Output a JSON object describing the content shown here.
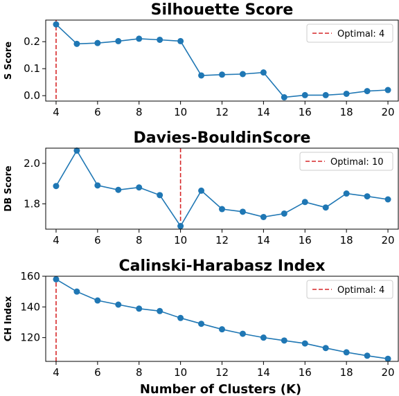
{
  "chart_data": [
    {
      "type": "line",
      "title": "Silhouette Score",
      "xlabel": "",
      "ylabel": "S Score",
      "xlim": [
        3.5,
        20.5
      ],
      "ylim": [
        -0.02,
        0.28
      ],
      "x_ticks": [
        4,
        6,
        8,
        10,
        12,
        14,
        16,
        18,
        20
      ],
      "y_ticks": [
        0.0,
        0.1,
        0.2
      ],
      "y_tick_labels": [
        "0.0",
        "0.1",
        "0.2"
      ],
      "x": [
        4,
        5,
        6,
        7,
        8,
        9,
        10,
        11,
        12,
        13,
        14,
        15,
        16,
        17,
        18,
        19,
        20
      ],
      "values": [
        0.264,
        0.192,
        0.195,
        0.202,
        0.211,
        0.207,
        0.202,
        0.075,
        0.078,
        0.08,
        0.086,
        -0.006,
        0.002,
        0.002,
        0.007,
        0.017,
        0.021
      ],
      "optimal_k": 4,
      "legend": "Optimal: 4",
      "legend_position": "top-right",
      "line_color": "#1f77b4",
      "optimal_color": "#d62728"
    },
    {
      "type": "line",
      "title": "Davies-BouldinScore",
      "xlabel": "",
      "ylabel": "DB Score",
      "xlim": [
        3.5,
        20.5
      ],
      "ylim": [
        1.675,
        2.075
      ],
      "x_ticks": [
        4,
        6,
        8,
        10,
        12,
        14,
        16,
        18,
        20
      ],
      "y_ticks": [
        1.8,
        2.0
      ],
      "y_tick_labels": [
        "1.8",
        "2.0"
      ],
      "x": [
        4,
        5,
        6,
        7,
        8,
        9,
        10,
        11,
        12,
        13,
        14,
        15,
        16,
        17,
        18,
        19,
        20
      ],
      "values": [
        1.888,
        2.063,
        1.891,
        1.869,
        1.881,
        1.843,
        1.69,
        1.865,
        1.774,
        1.761,
        1.735,
        1.752,
        1.809,
        1.782,
        1.851,
        1.837,
        1.822
      ],
      "optimal_k": 10,
      "legend": "Optimal: 10",
      "legend_position": "top-right",
      "line_color": "#1f77b4",
      "optimal_color": "#d62728"
    },
    {
      "type": "line",
      "title": "Calinski-Harabasz Index",
      "xlabel": "Number of Clusters (K)",
      "ylabel": "CH Index",
      "xlim": [
        3.5,
        20.5
      ],
      "ylim": [
        104.5,
        160.0
      ],
      "x_ticks": [
        4,
        6,
        8,
        10,
        12,
        14,
        16,
        18,
        20
      ],
      "y_ticks": [
        120,
        140,
        160
      ],
      "y_tick_labels": [
        "120",
        "140",
        "160"
      ],
      "x": [
        4,
        5,
        6,
        7,
        8,
        9,
        10,
        11,
        12,
        13,
        14,
        15,
        16,
        17,
        18,
        19,
        20
      ],
      "values": [
        158.0,
        150.0,
        144.2,
        141.5,
        138.9,
        137.3,
        132.8,
        129.0,
        125.4,
        122.5,
        120.0,
        118.1,
        116.2,
        113.2,
        110.4,
        108.2,
        106.2
      ],
      "optimal_k": 4,
      "legend": "Optimal: 4",
      "legend_position": "top-right",
      "line_color": "#1f77b4",
      "optimal_color": "#d62728"
    }
  ]
}
